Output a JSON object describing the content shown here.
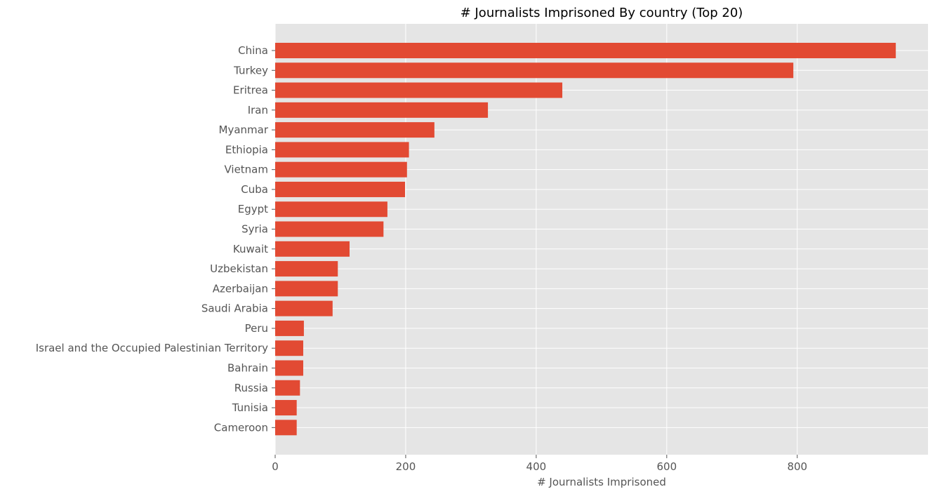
{
  "chart_data": {
    "type": "bar",
    "orientation": "horizontal",
    "title": "# Journalists Imprisoned By country (Top 20)",
    "xlabel": "# Journalists Imprisoned",
    "ylabel": "",
    "xlim": [
      0,
      1000
    ],
    "xticks": [
      0,
      200,
      400,
      600,
      800
    ],
    "grid": true,
    "bar_color": "#E24A33",
    "background_color": "#E5E5E5",
    "categories": [
      "China",
      "Turkey",
      "Eritrea",
      "Iran",
      "Myanmar",
      "Ethiopia",
      "Vietnam",
      "Cuba",
      "Egypt",
      "Syria",
      "Kuwait",
      "Uzbekistan",
      "Azerbaijan",
      "Saudi Arabia",
      "Peru",
      "Israel and the Occupied Palestinian Territory",
      "Bahrain",
      "Russia",
      "Tunisia",
      "Cameroon"
    ],
    "values": [
      951,
      794,
      440,
      326,
      244,
      205,
      202,
      199,
      172,
      166,
      114,
      96,
      96,
      88,
      44,
      43,
      43,
      38,
      33,
      33
    ]
  }
}
